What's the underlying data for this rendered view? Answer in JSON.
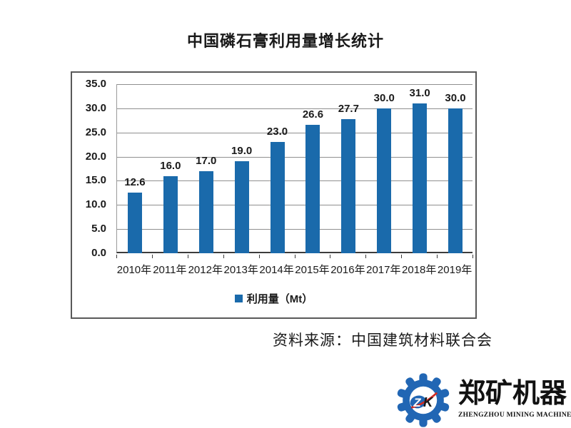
{
  "title": "中国磷石膏利用量增长统计",
  "chart_data": {
    "type": "bar",
    "title": "中国磷石膏利用量增长统计",
    "categories": [
      "2010年",
      "2011年",
      "2012年",
      "2013年",
      "2014年",
      "2015年",
      "2016年",
      "2017年",
      "2018年",
      "2019年"
    ],
    "values": [
      12.6,
      16.0,
      17.0,
      19.0,
      23.0,
      26.6,
      27.7,
      30.0,
      31.0,
      30.0
    ],
    "value_labels": [
      "12.6",
      "16.0",
      "17.0",
      "19.0",
      "23.0",
      "26.6",
      "27.7",
      "30.0",
      "31.0",
      "30.0"
    ],
    "series_name": "利用量（Mt）",
    "xlabel": "",
    "ylabel": "",
    "ylim": [
      0,
      35
    ],
    "ytick_values": [
      35,
      30,
      25,
      20,
      15,
      10,
      5,
      0
    ],
    "ytick_labels": [
      "35.0",
      "30.0",
      "25.0",
      "20.0",
      "15.0",
      "10.0",
      "5.0",
      "0.0"
    ],
    "grid": true,
    "legend_position": "bottom",
    "bar_color": "#1a6aab",
    "gridline_color": "#8f8f8f"
  },
  "legend": {
    "swatch_color": "#1a6aab"
  },
  "source": {
    "text": "资料来源：中国建筑材料联合会"
  },
  "logo": {
    "monogram_z": "Z",
    "monogram_k": "K",
    "company_cn": "郑矿机器",
    "company_en": "ZHENGZHOU MINING MACHINERY",
    "gear_color": "#2166b4",
    "accent_red": "#d02c23",
    "text_color": "#111111"
  }
}
